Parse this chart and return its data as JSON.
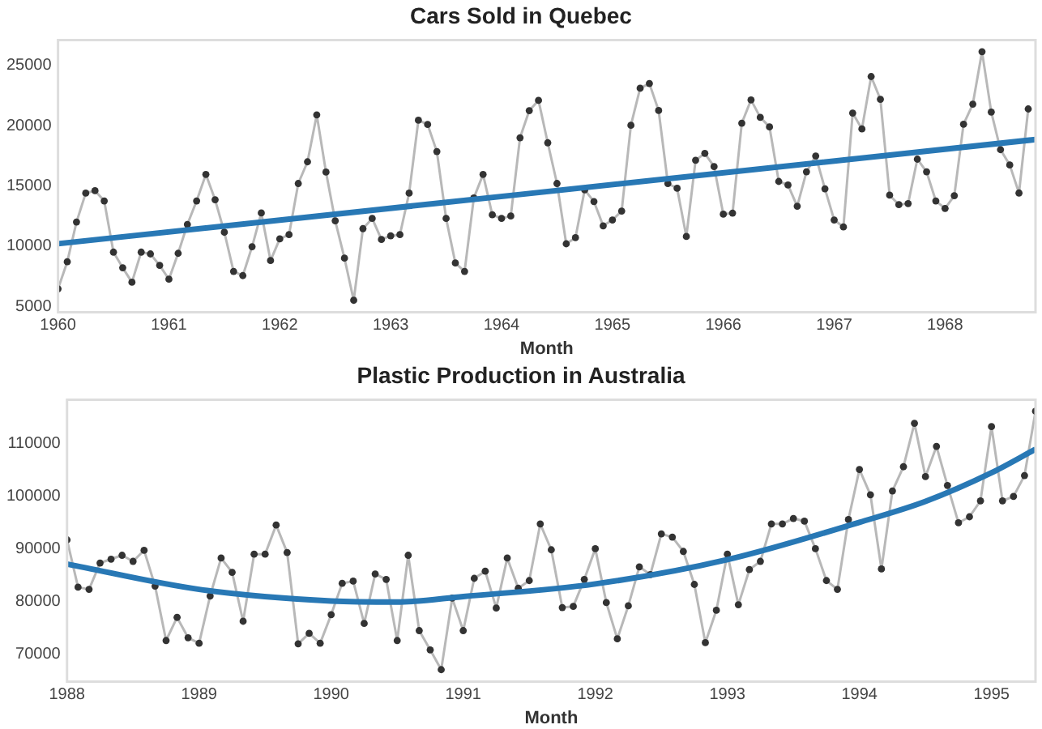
{
  "chart_data": [
    {
      "type": "line",
      "title": "Cars Sold in Quebec",
      "xlabel": "Month",
      "x": [
        "1960-01",
        "1960-02",
        "1960-03",
        "1960-04",
        "1960-05",
        "1960-06",
        "1960-07",
        "1960-08",
        "1960-09",
        "1960-10",
        "1960-11",
        "1960-12",
        "1961-01",
        "1961-02",
        "1961-03",
        "1961-04",
        "1961-05",
        "1961-06",
        "1961-07",
        "1961-08",
        "1961-09",
        "1961-10",
        "1961-11",
        "1961-12",
        "1962-01",
        "1962-02",
        "1962-03",
        "1962-04",
        "1962-05",
        "1962-06",
        "1962-07",
        "1962-08",
        "1962-09",
        "1962-10",
        "1962-11",
        "1962-12",
        "1963-01",
        "1963-02",
        "1963-03",
        "1963-04",
        "1963-05",
        "1963-06",
        "1963-07",
        "1963-08",
        "1963-09",
        "1963-10",
        "1963-11",
        "1963-12",
        "1964-01",
        "1964-02",
        "1964-03",
        "1964-04",
        "1964-05",
        "1964-06",
        "1964-07",
        "1964-08",
        "1964-09",
        "1964-10",
        "1964-11",
        "1964-12",
        "1965-01",
        "1965-02",
        "1965-03",
        "1965-04",
        "1965-05",
        "1965-06",
        "1965-07",
        "1965-08",
        "1965-09",
        "1965-10",
        "1965-11",
        "1965-12",
        "1966-01",
        "1966-02",
        "1966-03",
        "1966-04",
        "1966-05",
        "1966-06",
        "1966-07",
        "1966-08",
        "1966-09",
        "1966-10",
        "1966-11",
        "1966-12",
        "1967-01",
        "1967-02",
        "1967-03",
        "1967-04",
        "1967-05",
        "1967-06",
        "1967-07",
        "1967-08",
        "1967-09",
        "1967-10",
        "1967-11",
        "1967-12",
        "1968-01",
        "1968-02",
        "1968-03",
        "1968-04",
        "1968-05",
        "1968-06",
        "1968-07",
        "1968-08",
        "1968-09",
        "1968-10"
      ],
      "series": [
        {
          "color": "#333333",
          "marker": "circle",
          "values": [
            6450,
            8700,
            12000,
            14400,
            14600,
            13750,
            9500,
            8200,
            7000,
            9500,
            9350,
            8400,
            7250,
            9400,
            11800,
            13750,
            15950,
            13850,
            11150,
            7900,
            7550,
            9950,
            12750,
            8800,
            10600,
            10950,
            15200,
            17000,
            20900,
            16150,
            12100,
            9000,
            5500,
            11450,
            12300,
            10550,
            10850,
            10950,
            14400,
            20450,
            20100,
            17850,
            12300,
            8600,
            7900,
            14000,
            15950,
            12600,
            12300,
            12500,
            19000,
            21250,
            22100,
            18580,
            15200,
            10190,
            10700,
            14670,
            13700,
            11680,
            12170,
            12910,
            20030,
            23110,
            23500,
            21260,
            15200,
            14800,
            10800,
            17130,
            17700,
            16600,
            12650,
            12740,
            20210,
            22140,
            20690,
            19900,
            15370,
            15070,
            13310,
            16170,
            17480,
            14760,
            12170,
            11590,
            21050,
            19730,
            24080,
            22190,
            14230,
            13440,
            13530,
            17220,
            16170,
            13750,
            13130,
            14190,
            20120,
            21790,
            26140,
            21130,
            18010,
            16740,
            14410,
            21390
          ]
        },
        {
          "color": "#2878b5",
          "marker": "none",
          "x": [
            "1960-01",
            "1968-10-25"
          ],
          "values": [
            10200,
            18850
          ]
        }
      ],
      "xlim": [
        "1960-01",
        "1968-10-25"
      ],
      "xticks": [
        "1960",
        "1961",
        "1962",
        "1963",
        "1964",
        "1965",
        "1966",
        "1967",
        "1968"
      ],
      "ylim": [
        4500,
        27100
      ],
      "yticks": [
        5000,
        10000,
        15000,
        20000,
        25000
      ],
      "grid": false,
      "legend": false
    },
    {
      "type": "line",
      "title": "Plastic Production in Australia",
      "xlabel": "Month",
      "x": [
        "1988-01",
        "1988-02",
        "1988-03",
        "1988-04",
        "1988-05",
        "1988-06",
        "1988-07",
        "1988-08",
        "1988-09",
        "1988-10",
        "1988-11",
        "1988-12",
        "1989-01",
        "1989-02",
        "1989-03",
        "1989-04",
        "1989-05",
        "1989-06",
        "1989-07",
        "1989-08",
        "1989-09",
        "1989-10",
        "1989-11",
        "1989-12",
        "1990-01",
        "1990-02",
        "1990-03",
        "1990-04",
        "1990-05",
        "1990-06",
        "1990-07",
        "1990-08",
        "1990-09",
        "1990-10",
        "1990-11",
        "1990-12",
        "1991-01",
        "1991-02",
        "1991-03",
        "1991-04",
        "1991-05",
        "1991-06",
        "1991-07",
        "1991-08",
        "1991-09",
        "1991-10",
        "1991-11",
        "1991-12",
        "1992-01",
        "1992-02",
        "1992-03",
        "1992-04",
        "1992-05",
        "1992-06",
        "1992-07",
        "1992-08",
        "1992-09",
        "1992-10",
        "1992-11",
        "1992-12",
        "1993-01",
        "1993-02",
        "1993-03",
        "1993-04",
        "1993-05",
        "1993-06",
        "1993-07",
        "1993-08",
        "1993-09",
        "1993-10",
        "1993-11",
        "1993-12",
        "1994-01",
        "1994-02",
        "1994-03",
        "1994-04",
        "1994-05",
        "1994-06",
        "1994-07",
        "1994-08",
        "1994-09",
        "1994-10",
        "1994-11",
        "1994-12",
        "1995-01",
        "1995-02",
        "1995-03",
        "1995-04",
        "1995-05"
      ],
      "series": [
        {
          "color": "#333333",
          "marker": "circle",
          "values": [
            91670,
            82710,
            82290,
            87290,
            88020,
            88750,
            87600,
            89690,
            82920,
            72600,
            76980,
            73130,
            72080,
            81040,
            88230,
            85520,
            76250,
            88960,
            88960,
            94480,
            89270,
            71980,
            73960,
            72080,
            77500,
            83440,
            83850,
            75830,
            85210,
            84170,
            72600,
            88750,
            74480,
            70830,
            67080,
            80630,
            74480,
            84380,
            85730,
            78750,
            88230,
            82500,
            83960,
            94690,
            89790,
            78850,
            79060,
            84170,
            90000,
            79790,
            72920,
            79170,
            86560,
            85100,
            92810,
            92190,
            89480,
            83230,
            72190,
            78330,
            88960,
            79380,
            86040,
            87600,
            94690,
            94690,
            95730,
            95210,
            90000,
            83960,
            82290,
            95520,
            105000,
            100210,
            86150,
            100940,
            105520,
            113750,
            103650,
            109380,
            101980,
            94900,
            96040,
            99060,
            113130,
            99060,
            99900,
            103850,
            116040
          ]
        },
        {
          "color": "#2878b5",
          "marker": "none",
          "x": [
            "1988-01",
            "1989-01",
            "1990-01",
            "1990-07",
            "1991-01",
            "1992-01",
            "1993-01",
            "1994-01",
            "1994-07",
            "1995-01",
            "1995-05"
          ],
          "values": [
            87080,
            82290,
            80100,
            79900,
            80940,
            83330,
            87920,
            95000,
            98960,
            104380,
            108850
          ]
        }
      ],
      "xlim": [
        "1988-01",
        "1995-05"
      ],
      "xticks": [
        "1988",
        "1989",
        "1990",
        "1991",
        "1992",
        "1993",
        "1994",
        "1995"
      ],
      "ylim": [
        64800,
        118200
      ],
      "yticks": [
        70000,
        80000,
        90000,
        100000,
        110000
      ],
      "grid": false,
      "legend": false
    }
  ]
}
